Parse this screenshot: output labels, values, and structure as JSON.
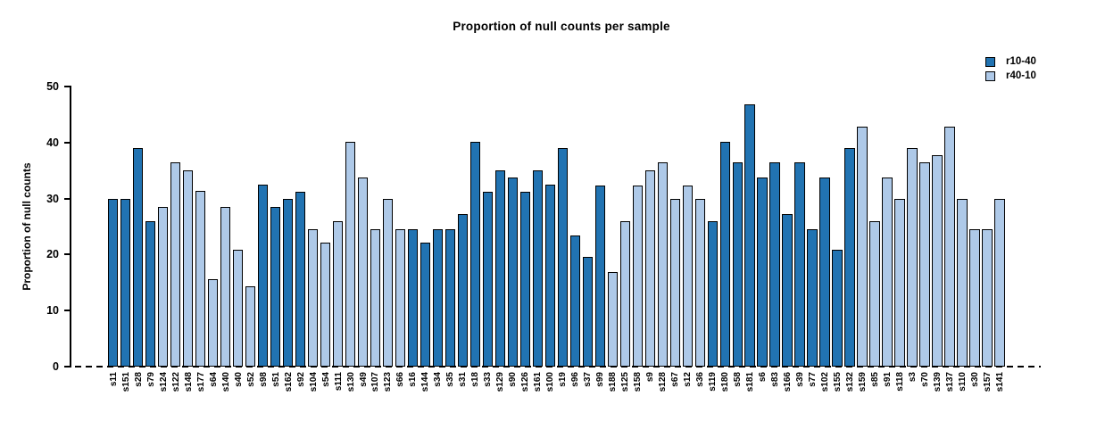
{
  "chart_data": {
    "type": "bar",
    "title": "Proportion of null counts per sample",
    "xlabel": "",
    "ylabel": "Proportion of null counts",
    "ylim": [
      0,
      50
    ],
    "yticks": [
      0,
      10,
      20,
      30,
      40,
      50
    ],
    "grid": false,
    "legend_position": "top-right",
    "baseline_style": "dashed",
    "colors": {
      "r10-40": "#2173b2",
      "r40-10": "#aec9e8",
      "bar_border": "#000000"
    },
    "legend": [
      {
        "label": "r10-40",
        "color": "#2173b2"
      },
      {
        "label": "r40-10",
        "color": "#aec9e8"
      }
    ],
    "samples": [
      {
        "label": "s11",
        "value": 29.9,
        "series": "r10-40"
      },
      {
        "label": "s151",
        "value": 29.9,
        "series": "r10-40"
      },
      {
        "label": "s28",
        "value": 39.0,
        "series": "r10-40"
      },
      {
        "label": "s79",
        "value": 26.0,
        "series": "r10-40"
      },
      {
        "label": "s124",
        "value": 28.5,
        "series": "r40-10"
      },
      {
        "label": "s122",
        "value": 36.4,
        "series": "r40-10"
      },
      {
        "label": "s148",
        "value": 35.0,
        "series": "r40-10"
      },
      {
        "label": "s177",
        "value": 31.3,
        "series": "r40-10"
      },
      {
        "label": "s64",
        "value": 15.6,
        "series": "r40-10"
      },
      {
        "label": "s140",
        "value": 28.5,
        "series": "r40-10"
      },
      {
        "label": "s40",
        "value": 20.8,
        "series": "r40-10"
      },
      {
        "label": "s52",
        "value": 14.3,
        "series": "r40-10"
      },
      {
        "label": "s98",
        "value": 32.5,
        "series": "r10-40"
      },
      {
        "label": "s51",
        "value": 28.5,
        "series": "r10-40"
      },
      {
        "label": "s162",
        "value": 29.9,
        "series": "r10-40"
      },
      {
        "label": "s92",
        "value": 31.2,
        "series": "r10-40"
      },
      {
        "label": "s104",
        "value": 24.5,
        "series": "r40-10"
      },
      {
        "label": "s54",
        "value": 22.1,
        "series": "r40-10"
      },
      {
        "label": "s111",
        "value": 26.0,
        "series": "r40-10"
      },
      {
        "label": "s130",
        "value": 40.2,
        "series": "r40-10"
      },
      {
        "label": "s49",
        "value": 33.8,
        "series": "r40-10"
      },
      {
        "label": "s107",
        "value": 24.5,
        "series": "r40-10"
      },
      {
        "label": "s123",
        "value": 29.9,
        "series": "r40-10"
      },
      {
        "label": "s66",
        "value": 24.5,
        "series": "r40-10"
      },
      {
        "label": "s16",
        "value": 24.5,
        "series": "r10-40"
      },
      {
        "label": "s144",
        "value": 22.1,
        "series": "r10-40"
      },
      {
        "label": "s34",
        "value": 24.5,
        "series": "r10-40"
      },
      {
        "label": "s35",
        "value": 24.5,
        "series": "r10-40"
      },
      {
        "label": "s31",
        "value": 27.2,
        "series": "r10-40"
      },
      {
        "label": "s18",
        "value": 40.2,
        "series": "r10-40"
      },
      {
        "label": "s33",
        "value": 31.2,
        "series": "r10-40"
      },
      {
        "label": "s129",
        "value": 35.0,
        "series": "r10-40"
      },
      {
        "label": "s90",
        "value": 33.8,
        "series": "r10-40"
      },
      {
        "label": "s126",
        "value": 31.2,
        "series": "r10-40"
      },
      {
        "label": "s161",
        "value": 35.0,
        "series": "r10-40"
      },
      {
        "label": "s100",
        "value": 32.5,
        "series": "r10-40"
      },
      {
        "label": "s19",
        "value": 39.0,
        "series": "r10-40"
      },
      {
        "label": "s96",
        "value": 23.4,
        "series": "r10-40"
      },
      {
        "label": "s37",
        "value": 19.6,
        "series": "r10-40"
      },
      {
        "label": "s99",
        "value": 32.4,
        "series": "r10-40"
      },
      {
        "label": "s188",
        "value": 16.8,
        "series": "r40-10"
      },
      {
        "label": "s125",
        "value": 26.0,
        "series": "r40-10"
      },
      {
        "label": "s158",
        "value": 32.4,
        "series": "r40-10"
      },
      {
        "label": "s9",
        "value": 35.0,
        "series": "r40-10"
      },
      {
        "label": "s128",
        "value": 36.4,
        "series": "r40-10"
      },
      {
        "label": "s67",
        "value": 29.9,
        "series": "r40-10"
      },
      {
        "label": "s12",
        "value": 32.4,
        "series": "r40-10"
      },
      {
        "label": "s36",
        "value": 29.9,
        "series": "r40-10"
      },
      {
        "label": "s119",
        "value": 26.0,
        "series": "r10-40"
      },
      {
        "label": "s180",
        "value": 40.2,
        "series": "r10-40"
      },
      {
        "label": "s58",
        "value": 36.4,
        "series": "r10-40"
      },
      {
        "label": "s181",
        "value": 46.8,
        "series": "r10-40"
      },
      {
        "label": "s6",
        "value": 33.8,
        "series": "r10-40"
      },
      {
        "label": "s83",
        "value": 36.4,
        "series": "r10-40"
      },
      {
        "label": "s166",
        "value": 27.2,
        "series": "r10-40"
      },
      {
        "label": "s39",
        "value": 36.4,
        "series": "r10-40"
      },
      {
        "label": "s77",
        "value": 24.5,
        "series": "r10-40"
      },
      {
        "label": "s102",
        "value": 33.8,
        "series": "r10-40"
      },
      {
        "label": "s155",
        "value": 20.8,
        "series": "r10-40"
      },
      {
        "label": "s132",
        "value": 39.0,
        "series": "r10-40"
      },
      {
        "label": "s159",
        "value": 42.8,
        "series": "r40-10"
      },
      {
        "label": "s85",
        "value": 26.0,
        "series": "r40-10"
      },
      {
        "label": "s91",
        "value": 33.8,
        "series": "r40-10"
      },
      {
        "label": "s118",
        "value": 29.9,
        "series": "r40-10"
      },
      {
        "label": "s3",
        "value": 39.0,
        "series": "r40-10"
      },
      {
        "label": "s70",
        "value": 36.4,
        "series": "r40-10"
      },
      {
        "label": "s139",
        "value": 37.7,
        "series": "r40-10"
      },
      {
        "label": "s137",
        "value": 42.8,
        "series": "r40-10"
      },
      {
        "label": "s110",
        "value": 29.9,
        "series": "r40-10"
      },
      {
        "label": "s30",
        "value": 24.5,
        "series": "r40-10"
      },
      {
        "label": "s157",
        "value": 24.5,
        "series": "r40-10"
      },
      {
        "label": "s141",
        "value": 29.9,
        "series": "r40-10"
      }
    ]
  }
}
